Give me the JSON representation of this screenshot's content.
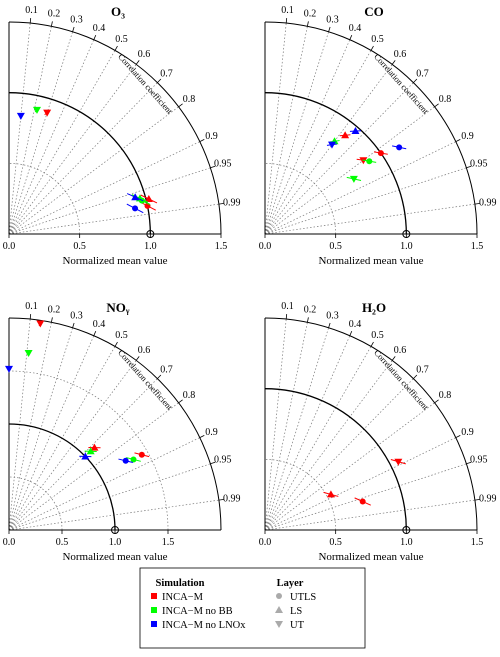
{
  "colors": {
    "INCA-M": "#ff0000",
    "INCA-M no BB": "#00ff00",
    "INCA-M no LNOx": "#0000ff",
    "reference_arc": "#000000",
    "grid": "#777777"
  },
  "legend": {
    "simulation_title": "Simulation",
    "layer_title": "Layer",
    "simulations": [
      "INCA−M",
      "INCA−M no BB",
      "INCA−M no LNOx"
    ],
    "layers": [
      "UTLS",
      "LS",
      "UT"
    ],
    "layer_markers": [
      "circle-marker",
      "triangle-up-marker",
      "triangle-down-marker"
    ]
  },
  "chart_data": [
    {
      "type": "scatter",
      "subtype": "taylor-diagram",
      "title": "O₃",
      "xlabel": "Normalized mean value",
      "correlation_label": "Correlation coefficient",
      "radial_range": [
        0,
        1.5
      ],
      "radial_ticks": [
        "0.0",
        "0.5",
        "1.0",
        "1.5"
      ],
      "correlation_ticks": [
        "0.1",
        "0.2",
        "0.3",
        "0.4",
        "0.5",
        "0.6",
        "0.7",
        "0.8",
        "0.9",
        "0.95",
        "0.99"
      ],
      "series": [
        {
          "name": "INCA−M",
          "points": [
            {
              "layer": "UTLS",
              "r": 1.0,
              "corr": 0.98
            },
            {
              "layer": "LS",
              "r": 1.02,
              "corr": 0.97
            },
            {
              "layer": "UT",
              "r": 0.9,
              "corr": 0.3
            }
          ]
        },
        {
          "name": "INCA−M no BB",
          "points": [
            {
              "layer": "UTLS",
              "r": 0.97,
              "corr": 0.97
            },
            {
              "layer": "LS",
              "r": 0.96,
              "corr": 0.965
            },
            {
              "layer": "UT",
              "r": 0.9,
              "corr": 0.22
            }
          ]
        },
        {
          "name": "INCA−M no LNOx",
          "points": [
            {
              "layer": "UTLS",
              "r": 0.91,
              "corr": 0.98
            },
            {
              "layer": "LS",
              "r": 0.93,
              "corr": 0.96
            },
            {
              "layer": "UT",
              "r": 0.84,
              "corr": 0.1
            }
          ]
        }
      ]
    },
    {
      "type": "scatter",
      "subtype": "taylor-diagram",
      "title": "CO",
      "xlabel": "Normalized mean value",
      "correlation_label": "Correlation coefficient",
      "radial_range": [
        0,
        1.5
      ],
      "radial_ticks": [
        "0.0",
        "0.5",
        "1.0",
        "1.5"
      ],
      "correlation_ticks": [
        "0.1",
        "0.2",
        "0.3",
        "0.4",
        "0.5",
        "0.6",
        "0.7",
        "0.8",
        "0.9",
        "0.95",
        "0.99"
      ],
      "series": [
        {
          "name": "INCA−M",
          "points": [
            {
              "layer": "UTLS",
              "r": 1.0,
              "corr": 0.82
            },
            {
              "layer": "LS",
              "r": 0.9,
              "corr": 0.63
            },
            {
              "layer": "UT",
              "r": 0.87,
              "corr": 0.8
            }
          ]
        },
        {
          "name": "INCA−M no BB",
          "points": [
            {
              "layer": "UTLS",
              "r": 0.9,
              "corr": 0.82
            },
            {
              "layer": "LS",
              "r": 0.82,
              "corr": 0.6
            },
            {
              "layer": "UT",
              "r": 0.74,
              "corr": 0.85
            }
          ]
        },
        {
          "name": "INCA−M no LNOx",
          "points": [
            {
              "layer": "UTLS",
              "r": 1.13,
              "corr": 0.84
            },
            {
              "layer": "LS",
              "r": 0.97,
              "corr": 0.66
            },
            {
              "layer": "UT",
              "r": 0.79,
              "corr": 0.6
            }
          ]
        }
      ]
    },
    {
      "type": "scatter",
      "subtype": "taylor-diagram",
      "title": "NOᵧ",
      "xlabel": "Normalized mean value",
      "correlation_label": "Correlation coefficient",
      "radial_range": [
        0,
        2.0
      ],
      "radial_ticks": [
        "0.0",
        "0.5",
        "1.0",
        "1.5"
      ],
      "correlation_ticks": [
        "0.1",
        "0.2",
        "0.3",
        "0.4",
        "0.5",
        "0.6",
        "0.7",
        "0.8",
        "0.9",
        "0.95",
        "0.99"
      ],
      "series": [
        {
          "name": "INCA−M",
          "points": [
            {
              "layer": "UTLS",
              "r": 1.44,
              "corr": 0.87
            },
            {
              "layer": "LS",
              "r": 1.12,
              "corr": 0.72
            },
            {
              "layer": "UT",
              "r": 1.97,
              "corr": 0.15
            }
          ]
        },
        {
          "name": "INCA−M no BB",
          "points": [
            {
              "layer": "UTLS",
              "r": 1.35,
              "corr": 0.87
            },
            {
              "layer": "LS",
              "r": 1.07,
              "corr": 0.72
            },
            {
              "layer": "UT",
              "r": 1.68,
              "corr": 0.11
            }
          ]
        },
        {
          "name": "INCA−M no LNOx",
          "points": [
            {
              "layer": "UTLS",
              "r": 1.28,
              "corr": 0.86
            },
            {
              "layer": "LS",
              "r": 1.0,
              "corr": 0.72
            },
            {
              "layer": "UT",
              "r": 1.52,
              "corr": 0.0
            }
          ]
        }
      ]
    },
    {
      "type": "scatter",
      "subtype": "taylor-diagram",
      "title": "H₂O",
      "xlabel": "Normalized mean value",
      "correlation_label": "Correlation coefficient",
      "radial_range": [
        0,
        1.5
      ],
      "radial_ticks": [
        "0.0",
        "0.5",
        "1.0",
        "1.5"
      ],
      "correlation_ticks": [
        "0.1",
        "0.2",
        "0.3",
        "0.4",
        "0.5",
        "0.6",
        "0.7",
        "0.8",
        "0.9",
        "0.95",
        "0.99"
      ],
      "series": [
        {
          "name": "INCA−M",
          "points": [
            {
              "layer": "UTLS",
              "r": 0.72,
              "corr": 0.96
            },
            {
              "layer": "LS",
              "r": 0.53,
              "corr": 0.88
            },
            {
              "layer": "UT",
              "r": 1.06,
              "corr": 0.89
            }
          ]
        }
      ]
    }
  ]
}
